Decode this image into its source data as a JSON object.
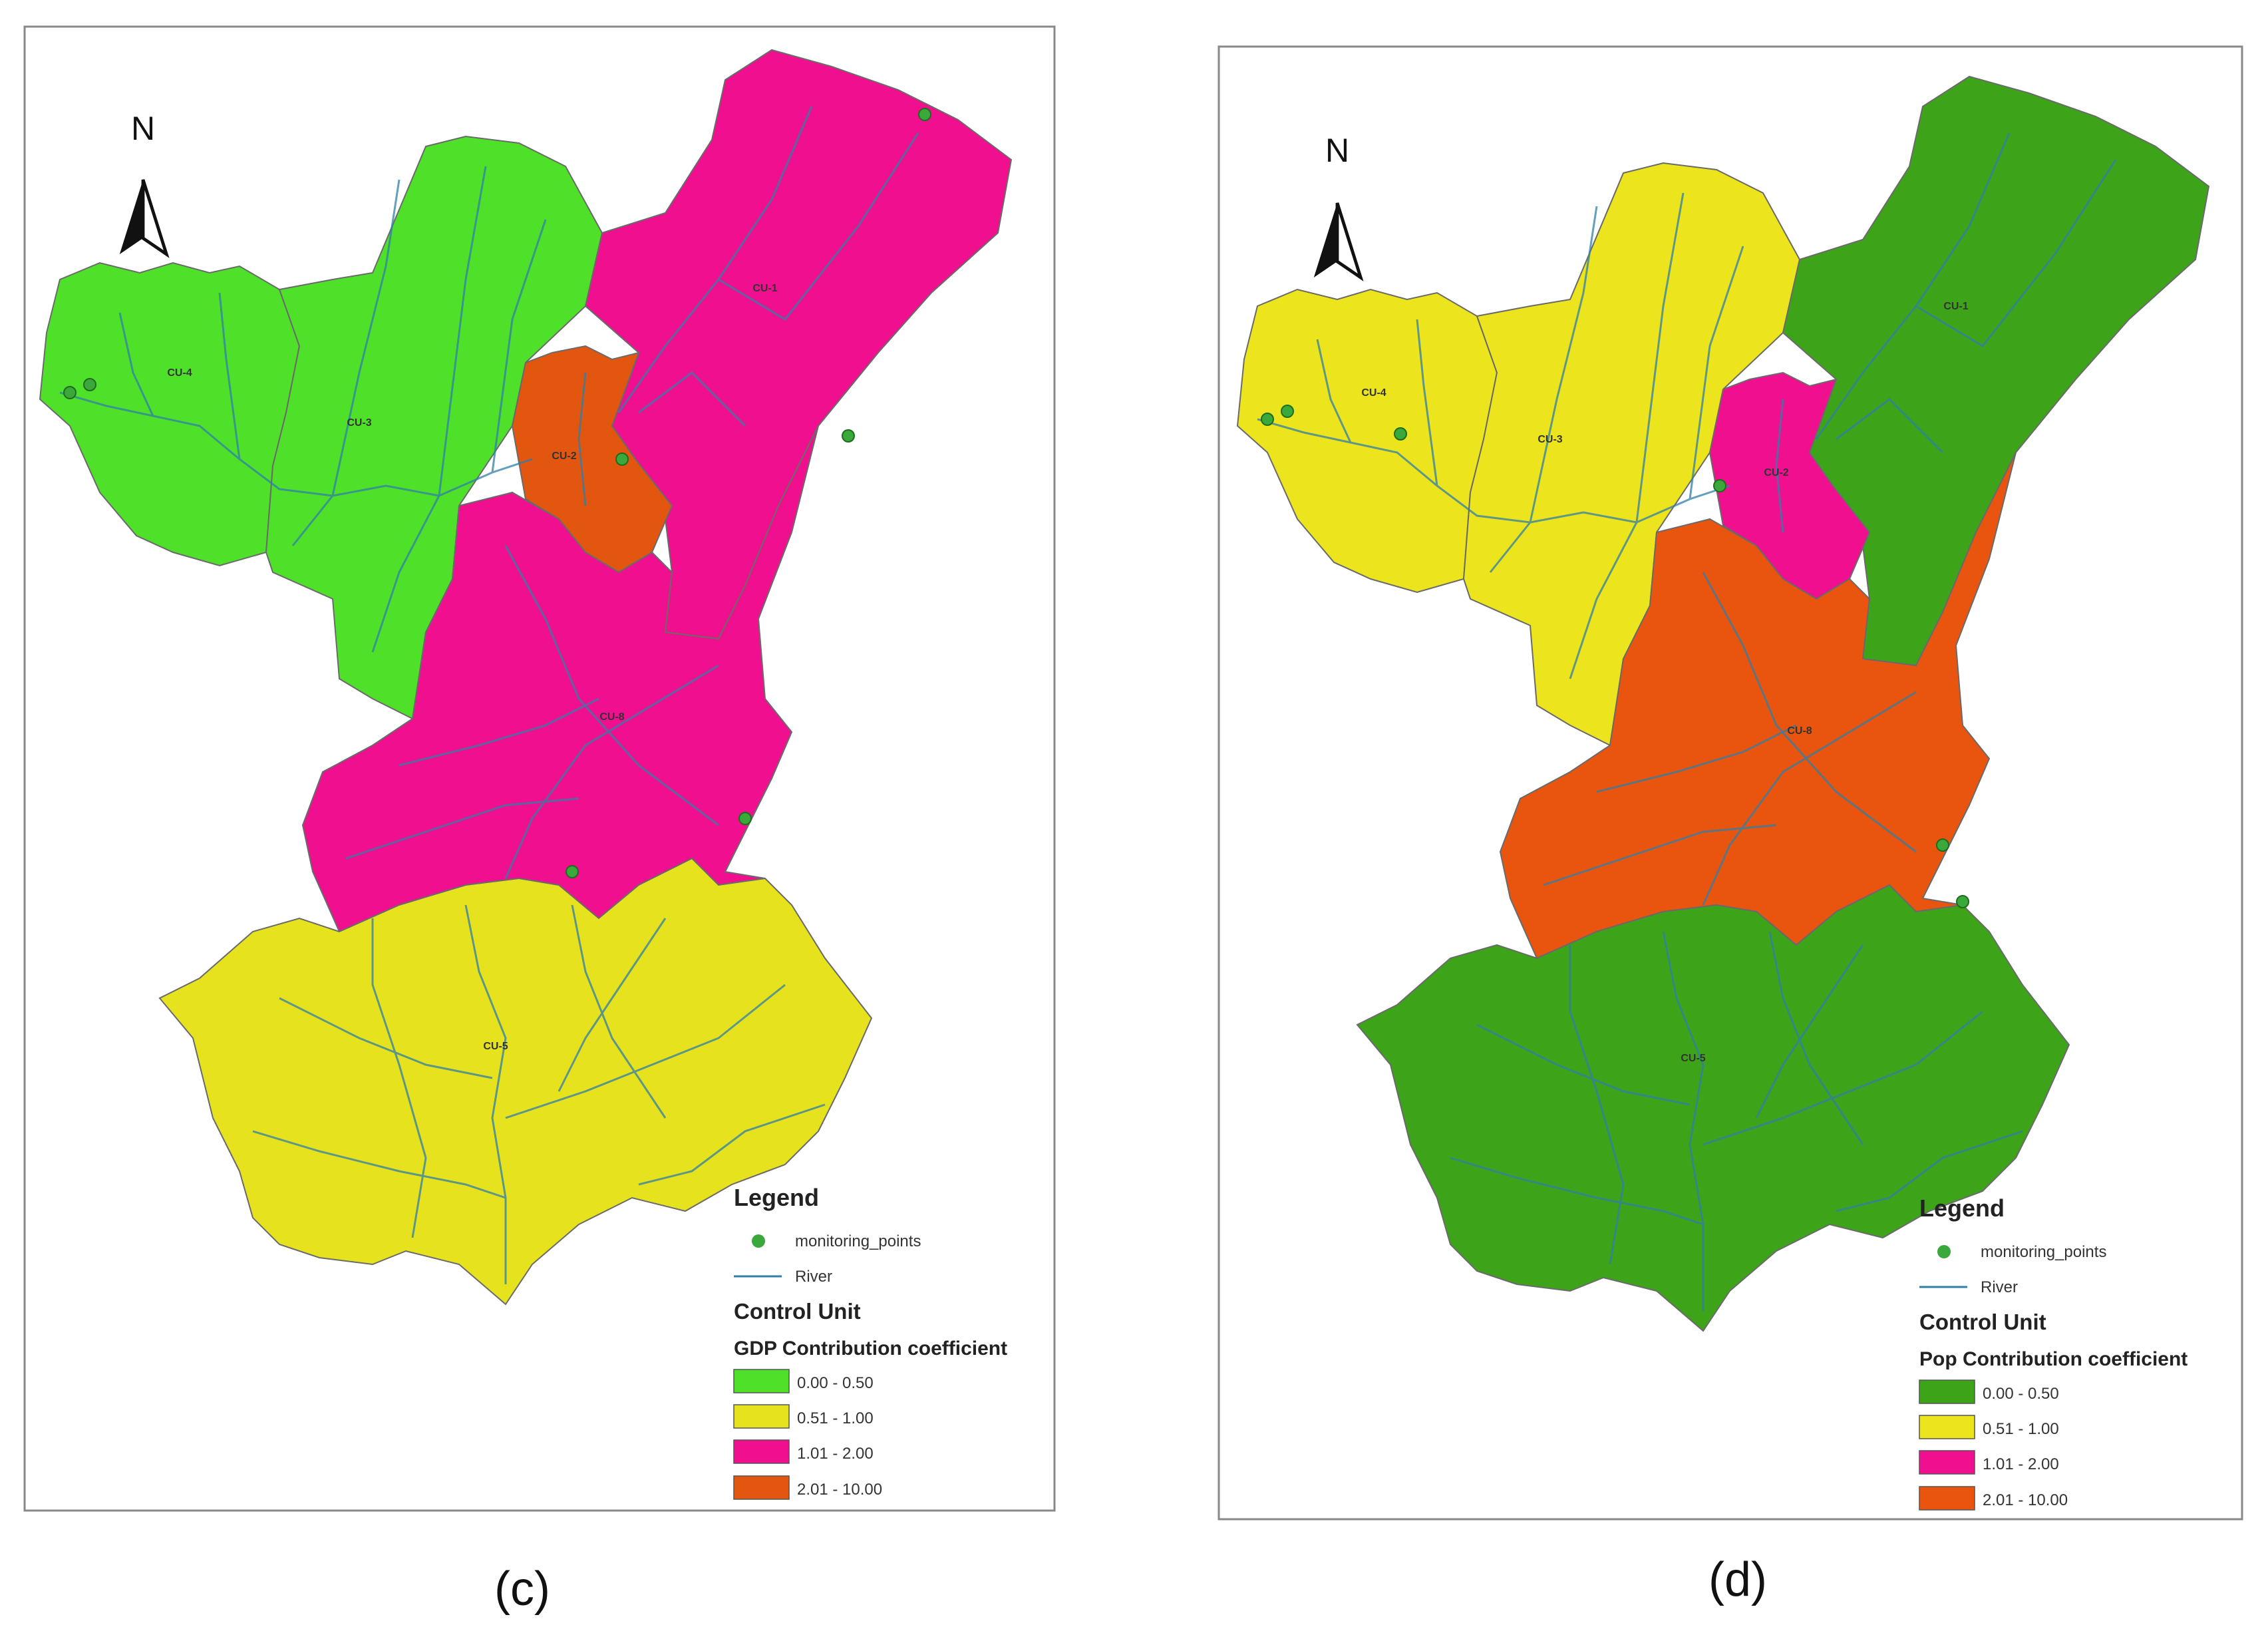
{
  "panels": [
    {
      "caption": "(c)",
      "north": "N",
      "legend": {
        "title": "Legend",
        "points_label": "monitoring_points",
        "river_label": "River",
        "control_unit_label": "Control Unit",
        "coef_title": "GDP Contribution coefficient",
        "classes": [
          {
            "range": "0.00 - 0.50",
            "color": "#4fe12a"
          },
          {
            "range": "0.51 - 1.00",
            "color": "#e6e21e"
          },
          {
            "range": "1.01 - 2.00",
            "color": "#f0108f"
          },
          {
            "range": "2.01 - 10.00",
            "color": "#e2560f"
          }
        ]
      },
      "units": [
        {
          "id": "CU-4",
          "label": "CU-4",
          "class": 0
        },
        {
          "id": "CU-3",
          "label": "CU-3",
          "class": 0
        },
        {
          "id": "CU-1",
          "label": "CU-1",
          "class": 2
        },
        {
          "id": "CU-2",
          "label": "CU-2",
          "class": 3
        },
        {
          "id": "CU-8",
          "label": "CU-8",
          "class": 2
        },
        {
          "id": "CU-5",
          "label": "CU-5",
          "class": 1
        }
      ]
    },
    {
      "caption": "(d)",
      "north": "N",
      "legend": {
        "title": "Legend",
        "points_label": "monitoring_points",
        "river_label": "River",
        "control_unit_label": "Control Unit",
        "coef_title": "Pop Contribution coefficient",
        "classes": [
          {
            "range": "0.00 - 0.50",
            "color": "#3da41a"
          },
          {
            "range": "0.51 - 1.00",
            "color": "#ece41c"
          },
          {
            "range": "1.01 - 2.00",
            "color": "#f0108f"
          },
          {
            "range": "2.01 - 10.00",
            "color": "#e9540f"
          }
        ]
      },
      "units": [
        {
          "id": "CU-4",
          "label": "CU-4",
          "class": 1
        },
        {
          "id": "CU-3",
          "label": "CU-3",
          "class": 1
        },
        {
          "id": "CU-1",
          "label": "CU-1",
          "class": 0
        },
        {
          "id": "CU-2",
          "label": "CU-2",
          "class": 2
        },
        {
          "id": "CU-8",
          "label": "CU-8",
          "class": 3
        },
        {
          "id": "CU-5",
          "label": "CU-5",
          "class": 0
        }
      ]
    }
  ]
}
